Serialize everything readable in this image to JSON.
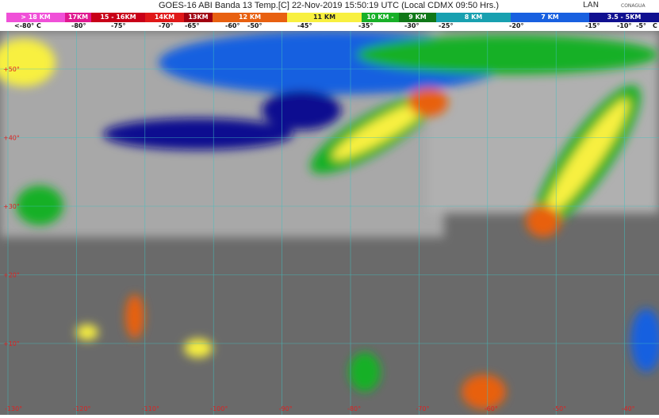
{
  "header": {
    "title": "GOES-16 ABI Banda 13 Temp.[C] 22-Nov-2019 15:50:19 UTC (Local CDMX  09:50 Hrs.)",
    "logos": [
      "LAN",
      "CONAGUA"
    ]
  },
  "legend": {
    "segments": [
      {
        "label": "> 18 KM",
        "color": "#f050d8"
      },
      {
        "label": "17KM",
        "color": "#e01890"
      },
      {
        "label": "15 - 16KM",
        "color": "#c80018"
      },
      {
        "label": "14KM",
        "color": "#e01818"
      },
      {
        "label": "13KM",
        "color": "#a00010"
      },
      {
        "label": "12 KM",
        "color": "#e86010"
      },
      {
        "label": "11 KM",
        "color": "#f8f040"
      },
      {
        "label": "10 KM - ",
        "color": "#18b028"
      },
      {
        "label": "9 KM",
        "color": "#107818"
      },
      {
        "label": "8 KM",
        "color": "#18a0b0"
      },
      {
        "label": "7 KM",
        "color": "#1860e0"
      },
      {
        "label": "3.5 - 5KM",
        "color": "#101090"
      }
    ],
    "temps": [
      "<-80° C",
      "-80°",
      "-75°",
      "-70°",
      "-65°",
      "-60°",
      "-50°",
      "-45°",
      "-35°",
      "-30°",
      "-25°",
      "-20°",
      "-15°",
      "-10°",
      "-5°",
      "C"
    ]
  },
  "map": {
    "lat_labels": [
      "+50°",
      "+40°",
      "+30°",
      "+20°",
      "+10°"
    ],
    "lon_labels": [
      "-130°",
      "-120°",
      "-110°",
      "-100°",
      "-90°",
      "-80°",
      "-70°",
      "-60°",
      "-50°",
      "-40°"
    ],
    "grid_color": "#40c0c0"
  }
}
